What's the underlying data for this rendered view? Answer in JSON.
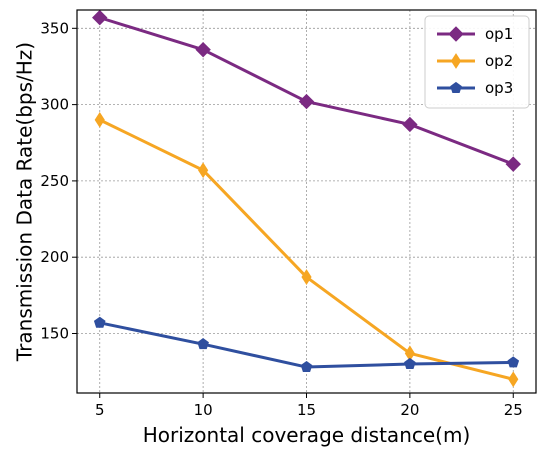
{
  "chart_data": {
    "type": "line",
    "title": "",
    "xlabel": "Horizontal coverage distance(m)",
    "ylabel": "Transmission Data Rate(bps/Hz)",
    "x": [
      5,
      10,
      15,
      20,
      25
    ],
    "xticks": [
      5,
      10,
      15,
      20,
      25
    ],
    "yticks": [
      150,
      200,
      250,
      300,
      350
    ],
    "xlim": [
      3.9,
      26.1
    ],
    "ylim": [
      111,
      362
    ],
    "grid": true,
    "legend_position": "top-right",
    "series": [
      {
        "name": "op1",
        "values": [
          357,
          336,
          302,
          287,
          261
        ],
        "color": "#7b2a82",
        "marker": "diamond"
      },
      {
        "name": "op2",
        "values": [
          290,
          257,
          187,
          137,
          120
        ],
        "color": "#f6a623",
        "marker": "thin-diamond"
      },
      {
        "name": "op3",
        "values": [
          157,
          143,
          128,
          130,
          131
        ],
        "color": "#2f4f9f",
        "marker": "pentagon"
      }
    ]
  }
}
